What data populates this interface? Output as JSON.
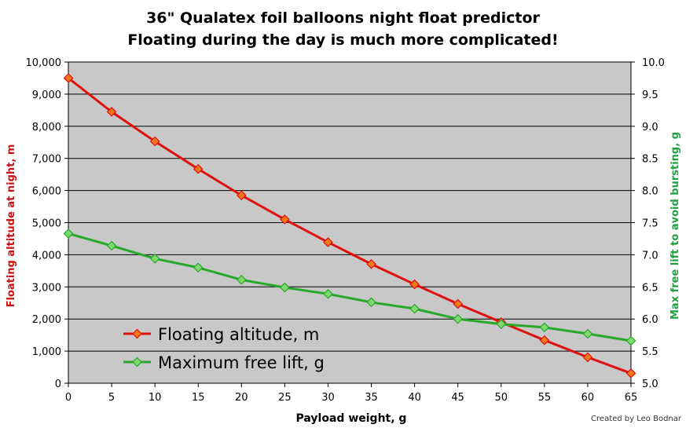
{
  "chart_data": {
    "type": "line",
    "title": "36\" Qualatex foil balloons night float predictor",
    "subtitle": "Floating during the day is much more complicated!",
    "xlabel": "Payload weight, g",
    "ylabel_left": "Floating altitude at night, m",
    "ylabel_right": "Max free lift to avoid bursting, g",
    "x": [
      0,
      5,
      10,
      15,
      20,
      25,
      30,
      35,
      40,
      45,
      50,
      55,
      60,
      65
    ],
    "xlim": [
      0,
      65
    ],
    "ylim_left": [
      0,
      10000
    ],
    "ylim_right": [
      5.0,
      10.0
    ],
    "x_ticks": [
      "0",
      "5",
      "10",
      "15",
      "20",
      "25",
      "30",
      "35",
      "40",
      "45",
      "50",
      "55",
      "60",
      "65"
    ],
    "y_left_ticks": [
      "0",
      "1,000",
      "2,000",
      "3,000",
      "4,000",
      "5,000",
      "6,000",
      "7,000",
      "8,000",
      "9,000",
      "10,000"
    ],
    "y_right_ticks": [
      "5.0",
      "5.5",
      "6.0",
      "6.5",
      "7.0",
      "7.5",
      "8.0",
      "8.5",
      "9.0",
      "9.5",
      "10.0"
    ],
    "grid": true,
    "legend_position": "bottom-left",
    "series": [
      {
        "name": "Floating altitude, m",
        "axis": "left",
        "color": "#e0100f",
        "marker_color": "#f07a1a",
        "values": [
          9500,
          8450,
          7530,
          6670,
          5850,
          5100,
          4390,
          3710,
          3080,
          2470,
          1900,
          1340,
          810,
          310
        ]
      },
      {
        "name": "Maximum free lift, g",
        "axis": "right",
        "color": "#28a82a",
        "marker_color": "#7fd96f",
        "values": [
          7.33,
          7.14,
          6.94,
          6.8,
          6.61,
          6.49,
          6.39,
          6.26,
          6.16,
          6.0,
          5.92,
          5.87,
          5.77,
          5.66
        ]
      }
    ]
  },
  "credit": "Created by Leo Bodnar",
  "colors": {
    "plot_bg": "#c8c8c8",
    "grid": "#000000",
    "left_label": "#d01010",
    "right_label": "#22a040"
  }
}
